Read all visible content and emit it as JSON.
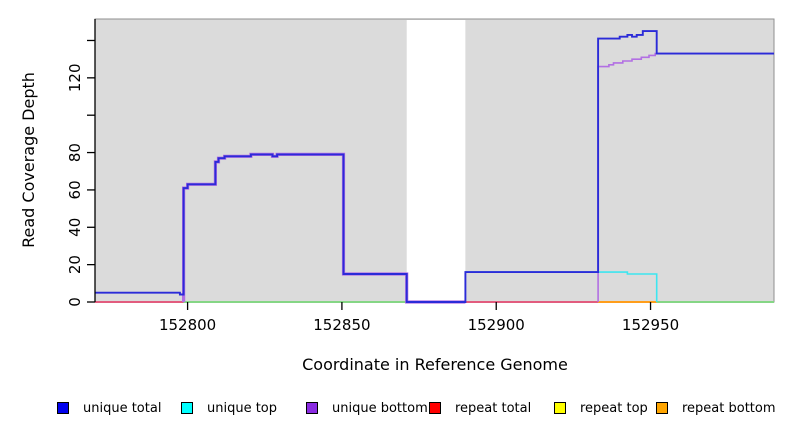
{
  "figure": {
    "plot_bg_color": "#DBDBDB",
    "plot_border_color": "#8F8F8F",
    "axis_color": "#000000"
  },
  "chart_data": {
    "type": "line",
    "title": "",
    "xlabel": "Coordinate in Reference Genome",
    "ylabel": "Read Coverage Depth",
    "xlim": [
      152770,
      152990
    ],
    "ylim": [
      0,
      151.5
    ],
    "x_ticks": [
      152800,
      152850,
      152900,
      152950
    ],
    "y_ticks": [
      0,
      20,
      40,
      60,
      80,
      100,
      120,
      140
    ],
    "y_tick_labels": [
      "0",
      "20",
      "40",
      "60",
      "80",
      "",
      "120",
      ""
    ],
    "grid": false,
    "legend_position": "bottom",
    "no_data_region": {
      "x_start": 152871,
      "x_end": 152890,
      "fill": "#FFFFFF"
    },
    "baseline_segments": [
      {
        "x1": 152770,
        "x2": 152798.7,
        "color": "#E25C7E"
      },
      {
        "x1": 152798.7,
        "x2": 152871,
        "color": "#85D685"
      },
      {
        "x1": 152890,
        "x2": 152933,
        "color": "#E25C7E"
      },
      {
        "x1": 152933,
        "x2": 152952,
        "color": "#FF9E1B"
      },
      {
        "x1": 152952,
        "x2": 152990,
        "color": "#85D685"
      }
    ],
    "series": [
      {
        "name": "unique bottom (left)",
        "color": "#B26FE3",
        "width": 3.2,
        "points": [
          [
            152798.7,
            0
          ],
          [
            152798.7,
            61
          ],
          [
            152800,
            61
          ],
          [
            152800,
            63
          ],
          [
            152809,
            63
          ],
          [
            152809,
            75
          ],
          [
            152810,
            75
          ],
          [
            152810,
            77
          ],
          [
            152812,
            77
          ],
          [
            152812,
            78
          ],
          [
            152820.5,
            78
          ],
          [
            152820.5,
            79
          ],
          [
            152827.5,
            79
          ],
          [
            152827.5,
            78
          ],
          [
            152829,
            78
          ],
          [
            152829,
            79
          ],
          [
            152850.5,
            79
          ],
          [
            152850.5,
            15
          ],
          [
            152871,
            15
          ],
          [
            152871,
            0
          ],
          [
            152890,
            0
          ]
        ]
      },
      {
        "name": "unique bottom (right)",
        "color": "#B26FE3",
        "width": 1.6,
        "points": [
          [
            152933,
            0
          ],
          [
            152933,
            126
          ],
          [
            152936.5,
            126
          ],
          [
            152936.5,
            127
          ],
          [
            152938,
            127
          ],
          [
            152938,
            128
          ],
          [
            152941,
            128
          ],
          [
            152941,
            129
          ],
          [
            152944,
            129
          ],
          [
            152944,
            130
          ],
          [
            152947,
            130
          ],
          [
            152947,
            131
          ],
          [
            152949.5,
            131
          ],
          [
            152949.5,
            132
          ],
          [
            152951.5,
            132
          ],
          [
            152951.5,
            133
          ],
          [
            152990,
            133
          ]
        ]
      },
      {
        "name": "unique top",
        "color": "#3CE6F0",
        "width": 1.6,
        "points": [
          [
            152890,
            16
          ],
          [
            152942.5,
            16
          ],
          [
            152942.5,
            15
          ],
          [
            152952,
            15
          ],
          [
            152952,
            0
          ]
        ]
      },
      {
        "name": "unique total",
        "color": "#2B2BD8",
        "width": 1.9,
        "points": [
          [
            152770,
            5
          ],
          [
            152797.5,
            5
          ],
          [
            152797.5,
            4
          ],
          [
            152798.7,
            4
          ],
          [
            152798.7,
            61
          ],
          [
            152800,
            61
          ],
          [
            152800,
            63
          ],
          [
            152809,
            63
          ],
          [
            152809,
            75
          ],
          [
            152810,
            75
          ],
          [
            152810,
            77
          ],
          [
            152812,
            77
          ],
          [
            152812,
            78
          ],
          [
            152820.5,
            78
          ],
          [
            152820.5,
            79
          ],
          [
            152827.5,
            79
          ],
          [
            152827.5,
            78
          ],
          [
            152829,
            78
          ],
          [
            152829,
            79
          ],
          [
            152850.5,
            79
          ],
          [
            152850.5,
            15
          ],
          [
            152871,
            15
          ],
          [
            152871,
            0
          ],
          [
            152890,
            0
          ],
          [
            152890,
            16
          ],
          [
            152933,
            16
          ],
          [
            152933,
            141
          ],
          [
            152940,
            141
          ],
          [
            152940,
            142
          ],
          [
            152942.5,
            142
          ],
          [
            152942.5,
            143
          ],
          [
            152944,
            143
          ],
          [
            152944,
            142
          ],
          [
            152945.5,
            142
          ],
          [
            152945.5,
            143
          ],
          [
            152947.5,
            143
          ],
          [
            152947.5,
            145
          ],
          [
            152952,
            145
          ],
          [
            152952,
            133
          ],
          [
            152990,
            133
          ]
        ]
      }
    ]
  },
  "legend": {
    "items": [
      {
        "label": "unique total",
        "color": "#0000EE"
      },
      {
        "label": "unique top",
        "color": "#00FFFF"
      },
      {
        "label": "unique bottom",
        "color": "#8A2BE2"
      },
      {
        "label": "repeat total",
        "color": "#FF0000"
      },
      {
        "label": "repeat top",
        "color": "#FFFF00"
      },
      {
        "label": "repeat bottom",
        "color": "#FFA500"
      }
    ]
  }
}
